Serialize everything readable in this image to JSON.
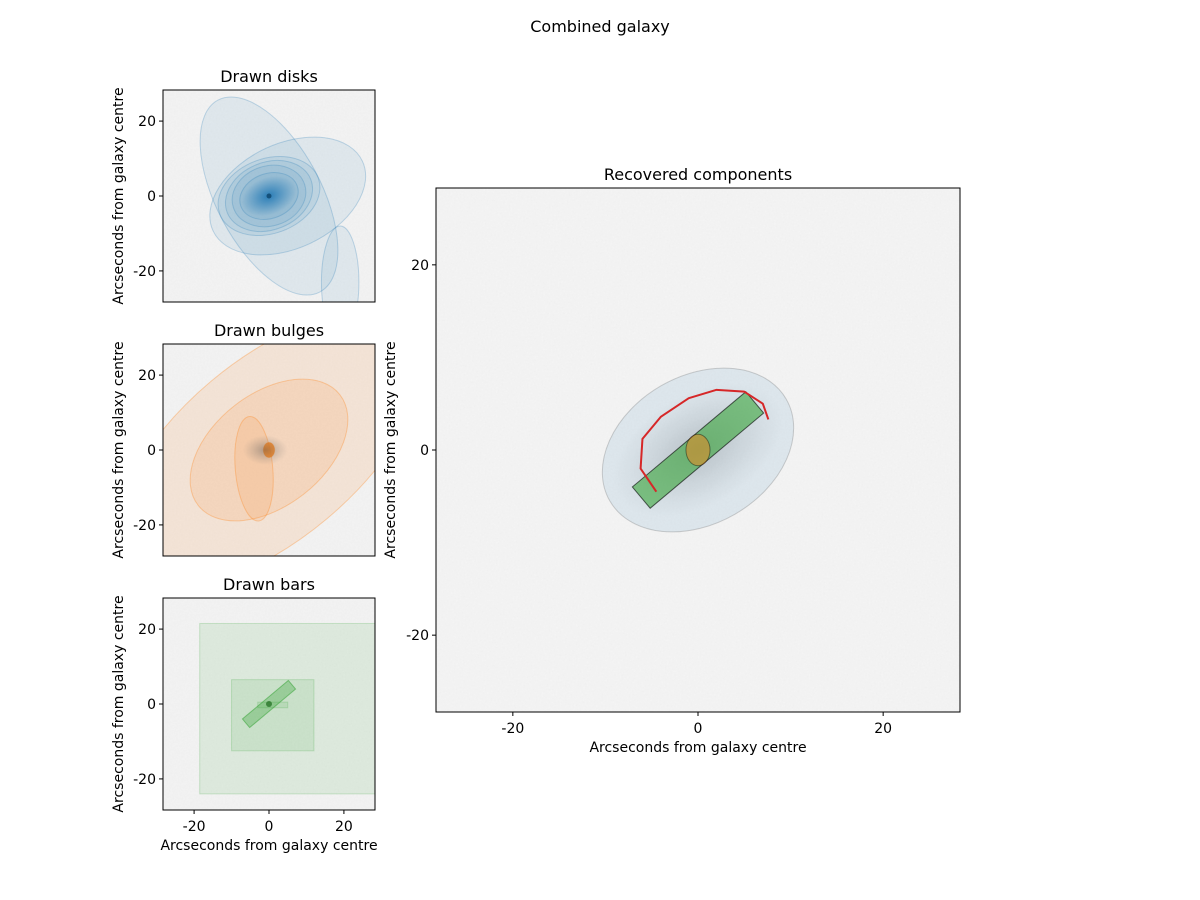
{
  "figure": {
    "title": "Combined galaxy"
  },
  "panels": {
    "disks": {
      "title": "Drawn disks",
      "ylabel": "Arcseconds from galaxy centre"
    },
    "bulges": {
      "title": "Drawn bulges",
      "ylabel": "Arcseconds from galaxy centre"
    },
    "bars": {
      "title": "Drawn bars",
      "ylabel": "Arcseconds from galaxy centre",
      "xlabel": "Arcseconds from galaxy centre"
    },
    "main": {
      "title": "Recovered components",
      "ylabel": "Arcseconds from galaxy centre",
      "xlabel": "Arcseconds from galaxy centre"
    }
  },
  "chart_data": [
    {
      "type": "scatter",
      "title": "Drawn disks",
      "ylabel": "Arcseconds from galaxy centre",
      "xlim": [
        -28.3,
        28.3
      ],
      "ylim": [
        -28.3,
        28.3
      ],
      "yticks": [
        20,
        0,
        -20
      ],
      "xticks_visible": false,
      "color": "#1f77b4",
      "ellipses": [
        {
          "cx": 5,
          "cy": 0,
          "w": 44,
          "h": 28,
          "angle": 25
        },
        {
          "cx": 0,
          "cy": 0,
          "w": 28,
          "h": 58,
          "angle": 28
        },
        {
          "cx": 0,
          "cy": 0,
          "w": 28,
          "h": 20,
          "angle": 20
        },
        {
          "cx": 0,
          "cy": 0,
          "w": 24,
          "h": 18,
          "angle": 22
        },
        {
          "cx": 0,
          "cy": 0,
          "w": 20,
          "h": 16,
          "angle": 18
        },
        {
          "cx": 0,
          "cy": 0,
          "w": 16,
          "h": 12,
          "angle": 20
        },
        {
          "cx": 19,
          "cy": -23,
          "w": 10,
          "h": 30,
          "angle": 0
        }
      ]
    },
    {
      "type": "scatter",
      "title": "Drawn bulges",
      "ylabel": "Arcseconds from galaxy centre",
      "xlim": [
        -28.3,
        28.3
      ],
      "ylim": [
        -28.3,
        28.3
      ],
      "yticks": [
        20,
        0,
        -20
      ],
      "xticks_visible": false,
      "color": "#ff7f0e",
      "ellipses": [
        {
          "cx": 0,
          "cy": 0,
          "w": 100,
          "h": 48,
          "angle": 40
        },
        {
          "cx": 0,
          "cy": 0,
          "w": 48,
          "h": 30,
          "angle": 38
        },
        {
          "cx": -4,
          "cy": -5,
          "w": 10,
          "h": 28,
          "angle": 5
        },
        {
          "cx": 0,
          "cy": 0,
          "w": 3,
          "h": 4,
          "angle": 0
        }
      ]
    },
    {
      "type": "scatter",
      "title": "Drawn bars",
      "ylabel": "Arcseconds from galaxy centre",
      "xlabel": "Arcseconds from galaxy centre",
      "xlim": [
        -28.3,
        28.3
      ],
      "ylim": [
        -28.3,
        28.3
      ],
      "xticks": [
        -20,
        0,
        20
      ],
      "yticks": [
        20,
        0,
        -20
      ],
      "color": "#2ca02c",
      "rectangles": [
        {
          "x0": -18.5,
          "y0": -24,
          "x1": 28.3,
          "y1": 21.5
        },
        {
          "x0": -10,
          "y0": -12.5,
          "x1": 12,
          "y1": 6.5
        },
        {
          "x0": -3,
          "y0": -1,
          "x1": 5,
          "y1": 0.5
        }
      ],
      "bars": [
        {
          "cx": 0,
          "cy": 0,
          "length": 16,
          "width": 3,
          "angle": 40
        }
      ]
    },
    {
      "type": "scatter",
      "title": "Recovered components",
      "xlabel": "Arcseconds from galaxy centre",
      "ylabel": "Arcseconds from galaxy centre",
      "xlim": [
        -28.3,
        28.3
      ],
      "ylim": [
        -28.3,
        28.3
      ],
      "xticks": [
        -20,
        0,
        20
      ],
      "yticks": [
        20,
        0,
        -20
      ],
      "disk": {
        "cx": 0,
        "cy": 0,
        "w": 22,
        "h": 16,
        "angle": 30,
        "color": "#1f77b4"
      },
      "bulge": {
        "cx": 0,
        "cy": 0,
        "w": 2.6,
        "h": 3.4,
        "angle": 0,
        "color": "#ff7f0e"
      },
      "bar": {
        "cx": 0,
        "cy": 0,
        "length": 16,
        "width": 3,
        "angle": 40,
        "color": "#2ca02c"
      },
      "spiral_arm": {
        "color": "#d62728",
        "points": [
          [
            -4.5,
            -4.5
          ],
          [
            -6.2,
            -2
          ],
          [
            -6,
            1.2
          ],
          [
            -4,
            3.6
          ],
          [
            -1,
            5.6
          ],
          [
            2,
            6.5
          ],
          [
            5,
            6.3
          ],
          [
            7,
            5
          ],
          [
            7.6,
            3.3
          ]
        ]
      }
    }
  ]
}
